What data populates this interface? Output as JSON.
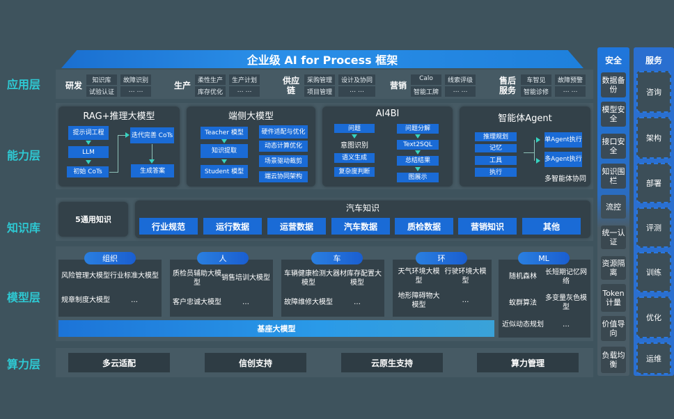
{
  "title": "企业级 AI for Process 框架",
  "layers": {
    "app": "应用层",
    "capability": "能力层",
    "knowledge": "知识库",
    "model": "模型层",
    "compute": "算力层"
  },
  "app": [
    {
      "label": "研发",
      "items": [
        "知识库",
        "故障识别",
        "试验认证",
        "… …"
      ]
    },
    {
      "label": "生产",
      "items": [
        "柔性生产",
        "生产计划",
        "库存优化",
        "… …"
      ]
    },
    {
      "label": "供应链",
      "items": [
        "采购管理",
        "设计及协同",
        "项目管理",
        "… …"
      ]
    },
    {
      "label": "营销",
      "items": [
        "Calo",
        "线索评级",
        "智能工牌",
        "… …"
      ]
    },
    {
      "label": "售后服务",
      "items": [
        "车智见",
        "故障预警",
        "智能诊修",
        "… …"
      ]
    }
  ],
  "capability": {
    "rag": {
      "title": "RAG+推理大模型",
      "items": [
        "提示词工程",
        "LLM",
        "初始 CoTs",
        "迭代完善 CoTs",
        "生成答案"
      ]
    },
    "edge": {
      "title": "端侧大模型",
      "items": [
        "Teacher 模型",
        "知识提取",
        "Student 模型",
        "硬件适配与优化",
        "动态计算优化",
        "场景驱动裁剪",
        "端云协同架构"
      ]
    },
    "ai4bi": {
      "title": "AI4BI",
      "items": [
        "问题",
        "意图识别",
        "语义生成",
        "复杂度判断",
        "问题分解",
        "Text2SQL",
        "总结结果",
        "图展示"
      ]
    },
    "agent": {
      "title": "智能体Agent",
      "items": [
        "推理规划",
        "记忆",
        "工具",
        "执行",
        "单Agent执行",
        "多Agent执行",
        "多智能体协同"
      ]
    }
  },
  "knowledge": {
    "general": "5通用知识",
    "auto_title": "汽车知识",
    "auto_items": [
      "行业规范",
      "运行数据",
      "运营数据",
      "汽车数据",
      "质检数据",
      "营销知识",
      "其他"
    ]
  },
  "model": {
    "groups": [
      {
        "label": "组织",
        "items": [
          "风险管理大模型",
          "行业标准大模型",
          "规章制度大模型",
          "…"
        ]
      },
      {
        "label": "人",
        "items": [
          "质检员辅助大模型",
          "销售培训大模型",
          "客户忠诚大模型",
          "…"
        ]
      },
      {
        "label": "车",
        "items": [
          "车辆健康检测大模型",
          "器材库存配置大模型",
          "故障维修大模型",
          "…"
        ]
      },
      {
        "label": "环",
        "items": [
          "天气环境大模型",
          "行驶环境大模型",
          "地形障碍物大模型",
          "…"
        ]
      },
      {
        "label": "ML",
        "items": [
          "随机森林",
          "长短期记忆网络",
          "蚁群算法",
          "多变量灰色模型",
          "近似动态规划",
          "…"
        ]
      }
    ],
    "base": "基座大模型"
  },
  "compute": [
    "多云适配",
    "信创支持",
    "云原生支持",
    "算力管理"
  ],
  "security": {
    "title": "安全",
    "items": [
      "数据备份",
      "模型安全",
      "接口安全",
      "知识围栏",
      "流控",
      "统一认证",
      "资源隔离",
      "Token计量",
      "价值导向",
      "负载均衡"
    ]
  },
  "service": {
    "title": "服务",
    "items": [
      "咨询",
      "架构",
      "部署",
      "评测",
      "训练",
      "优化",
      "运维"
    ]
  }
}
